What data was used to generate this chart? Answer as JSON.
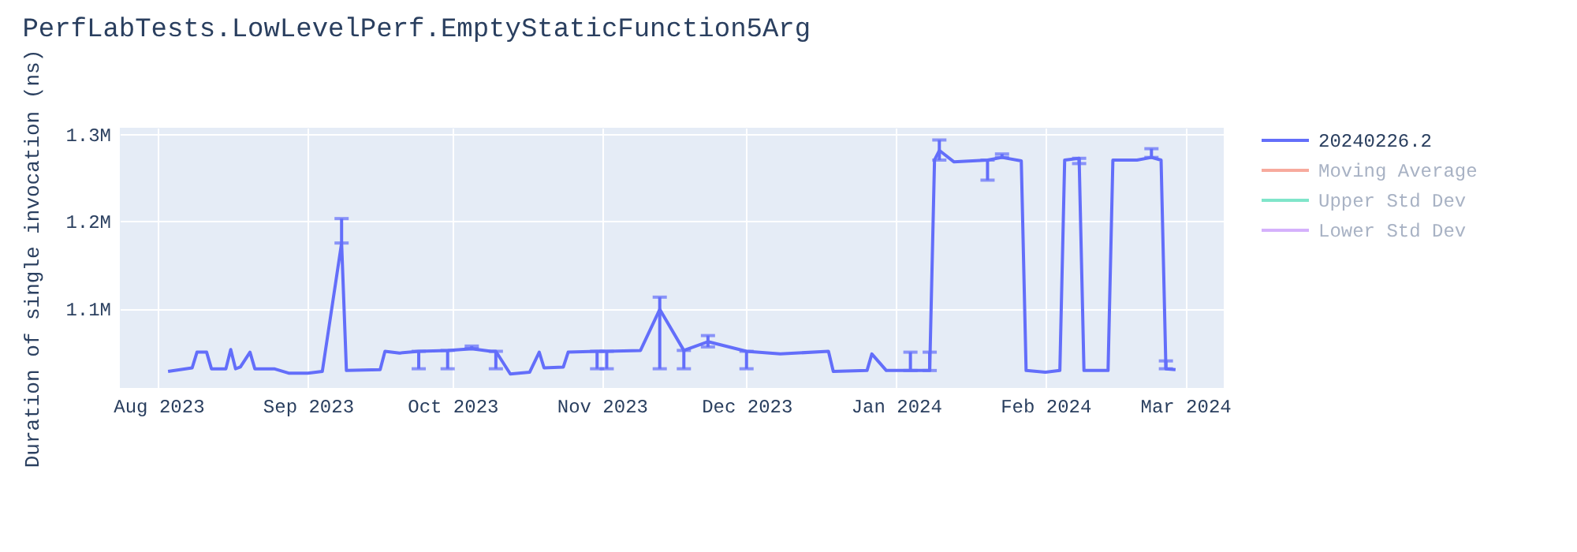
{
  "chart_data": {
    "type": "line",
    "title": "PerfLabTests.LowLevelPerf.EmptyStaticFunction5Arg",
    "ylabel": "Duration of single invocation (ns)",
    "x": [
      "2023-08-03",
      "2023-08-08",
      "2023-08-09",
      "2023-08-11",
      "2023-08-12",
      "2023-08-15",
      "2023-08-16",
      "2023-08-17",
      "2023-08-18",
      "2023-08-20",
      "2023-08-21",
      "2023-08-25",
      "2023-08-28",
      "2023-09-01",
      "2023-09-04",
      "2023-09-08",
      "2023-09-09",
      "2023-09-16",
      "2023-09-17",
      "2023-09-20",
      "2023-09-24",
      "2023-09-30",
      "2023-10-05",
      "2023-10-09",
      "2023-10-10",
      "2023-10-13",
      "2023-10-17",
      "2023-10-19",
      "2023-10-20",
      "2023-10-24",
      "2023-10-25",
      "2023-10-31",
      "2023-11-02",
      "2023-11-09",
      "2023-11-13",
      "2023-11-18",
      "2023-11-23",
      "2023-12-01",
      "2023-12-08",
      "2023-12-18",
      "2023-12-19",
      "2023-12-26",
      "2023-12-27",
      "2023-12-30",
      "2024-01-04",
      "2024-01-08",
      "2024-01-09",
      "2024-01-10",
      "2024-01-13",
      "2024-01-20",
      "2024-01-23",
      "2024-01-27",
      "2024-01-28",
      "2024-02-01",
      "2024-02-04",
      "2024-02-05",
      "2024-02-08",
      "2024-02-09",
      "2024-02-14",
      "2024-02-15",
      "2024-02-20",
      "2024-02-23",
      "2024-02-25",
      "2024-02-26",
      "2024-02-28"
    ],
    "series": [
      {
        "name": "20240226.2",
        "color": "#636efa",
        "values": [
          1028000,
          1032000,
          1050000,
          1050000,
          1031000,
          1031000,
          1053000,
          1031000,
          1033000,
          1050000,
          1031000,
          1031000,
          1026000,
          1026000,
          1028000,
          1175000,
          1029000,
          1030000,
          1051000,
          1049000,
          1051000,
          1052000,
          1054000,
          1051000,
          1051000,
          1025000,
          1027000,
          1050000,
          1032000,
          1033000,
          1050000,
          1051000,
          1051000,
          1052000,
          1099000,
          1052000,
          1062000,
          1051000,
          1048000,
          1051000,
          1028000,
          1029000,
          1048000,
          1029000,
          1029000,
          1029000,
          1270000,
          1281000,
          1268000,
          1270000,
          1273000,
          1269000,
          1029000,
          1027000,
          1029000,
          1270000,
          1272000,
          1029000,
          1029000,
          1270000,
          1270000,
          1273000,
          1270000,
          1031000,
          1030000
        ],
        "errors": [
          null,
          null,
          null,
          null,
          null,
          null,
          null,
          null,
          null,
          null,
          null,
          null,
          null,
          null,
          null,
          [
            1175000,
            1203000
          ],
          null,
          null,
          null,
          null,
          [
            1031000,
            1051000
          ],
          [
            1031000,
            1052000
          ],
          [
            1054000,
            1057000
          ],
          null,
          [
            1031000,
            1051000
          ],
          null,
          null,
          null,
          null,
          null,
          null,
          [
            1031000,
            1051000
          ],
          [
            1031000,
            1051000
          ],
          null,
          [
            1031000,
            1113000
          ],
          [
            1031000,
            1052000
          ],
          [
            1056000,
            1069000
          ],
          [
            1031000,
            1051000
          ],
          null,
          null,
          null,
          null,
          null,
          null,
          [
            1029000,
            1050000
          ],
          [
            1029000,
            1050000
          ],
          null,
          [
            1270000,
            1293000
          ],
          null,
          [
            1247000,
            1270000
          ],
          [
            1273000,
            1277000
          ],
          null,
          null,
          null,
          null,
          null,
          [
            1266000,
            1272000
          ],
          null,
          null,
          null,
          null,
          [
            1273000,
            1283000
          ],
          null,
          [
            1031000,
            1040000
          ],
          null
        ]
      },
      {
        "name": "Moving Average",
        "color": "#f7aa9d",
        "values": [
          null,
          null,
          null,
          null,
          null,
          null,
          null,
          null,
          null,
          null,
          null,
          null,
          null,
          null,
          null,
          null,
          null,
          null,
          null,
          null,
          null,
          null,
          null,
          null,
          null,
          null,
          null,
          null,
          null,
          null,
          null,
          null,
          null,
          null,
          null,
          null,
          null,
          null,
          null,
          null,
          null,
          null,
          null,
          null,
          null,
          null,
          null,
          null,
          null,
          null,
          null,
          null,
          null,
          null,
          null,
          null,
          null,
          null,
          null,
          null,
          null,
          null,
          null,
          null,
          null
        ]
      },
      {
        "name": "Upper Std Dev",
        "color": "#80e5ca",
        "values": [
          null,
          null,
          null,
          null,
          null,
          null,
          null,
          null,
          null,
          null,
          null,
          null,
          null,
          null,
          null,
          null,
          null,
          null,
          null,
          null,
          null,
          null,
          null,
          null,
          null,
          null,
          null,
          null,
          null,
          null,
          null,
          null,
          null,
          null,
          null,
          null,
          null,
          null,
          null,
          null,
          null,
          null,
          null,
          null,
          null,
          null,
          null,
          null,
          null,
          null,
          null,
          null,
          null,
          null,
          null,
          null,
          null,
          null,
          null,
          null,
          null,
          null,
          null,
          null,
          null
        ]
      },
      {
        "name": "Lower Std Dev",
        "color": "#d5b1fc",
        "values": [
          null,
          null,
          null,
          null,
          null,
          null,
          null,
          null,
          null,
          null,
          null,
          null,
          null,
          null,
          null,
          null,
          null,
          null,
          null,
          null,
          null,
          null,
          null,
          null,
          null,
          null,
          null,
          null,
          null,
          null,
          null,
          null,
          null,
          null,
          null,
          null,
          null,
          null,
          null,
          null,
          null,
          null,
          null,
          null,
          null,
          null,
          null,
          null,
          null,
          null,
          null,
          null,
          null,
          null,
          null,
          null,
          null,
          null,
          null,
          null,
          null,
          null,
          null,
          null,
          null
        ]
      }
    ],
    "xlim": [
      "2023-07-24",
      "2024-03-09"
    ],
    "xticks": [
      {
        "value": "2023-08-01",
        "label": "Aug 2023"
      },
      {
        "value": "2023-09-01",
        "label": "Sep 2023"
      },
      {
        "value": "2023-10-01",
        "label": "Oct 2023"
      },
      {
        "value": "2023-11-01",
        "label": "Nov 2023"
      },
      {
        "value": "2023-12-01",
        "label": "Dec 2023"
      },
      {
        "value": "2024-01-01",
        "label": "Jan 2024"
      },
      {
        "value": "2024-02-01",
        "label": "Feb 2024"
      },
      {
        "value": "2024-03-01",
        "label": "Mar 2024"
      }
    ],
    "ylim": [
      1009000,
      1307000
    ],
    "yticks": [
      {
        "value": 1100000,
        "label": "1.1M"
      },
      {
        "value": 1200000,
        "label": "1.2M"
      },
      {
        "value": 1300000,
        "label": "1.3M"
      }
    ],
    "grid": true,
    "legend": "right",
    "line_style": "solid"
  }
}
